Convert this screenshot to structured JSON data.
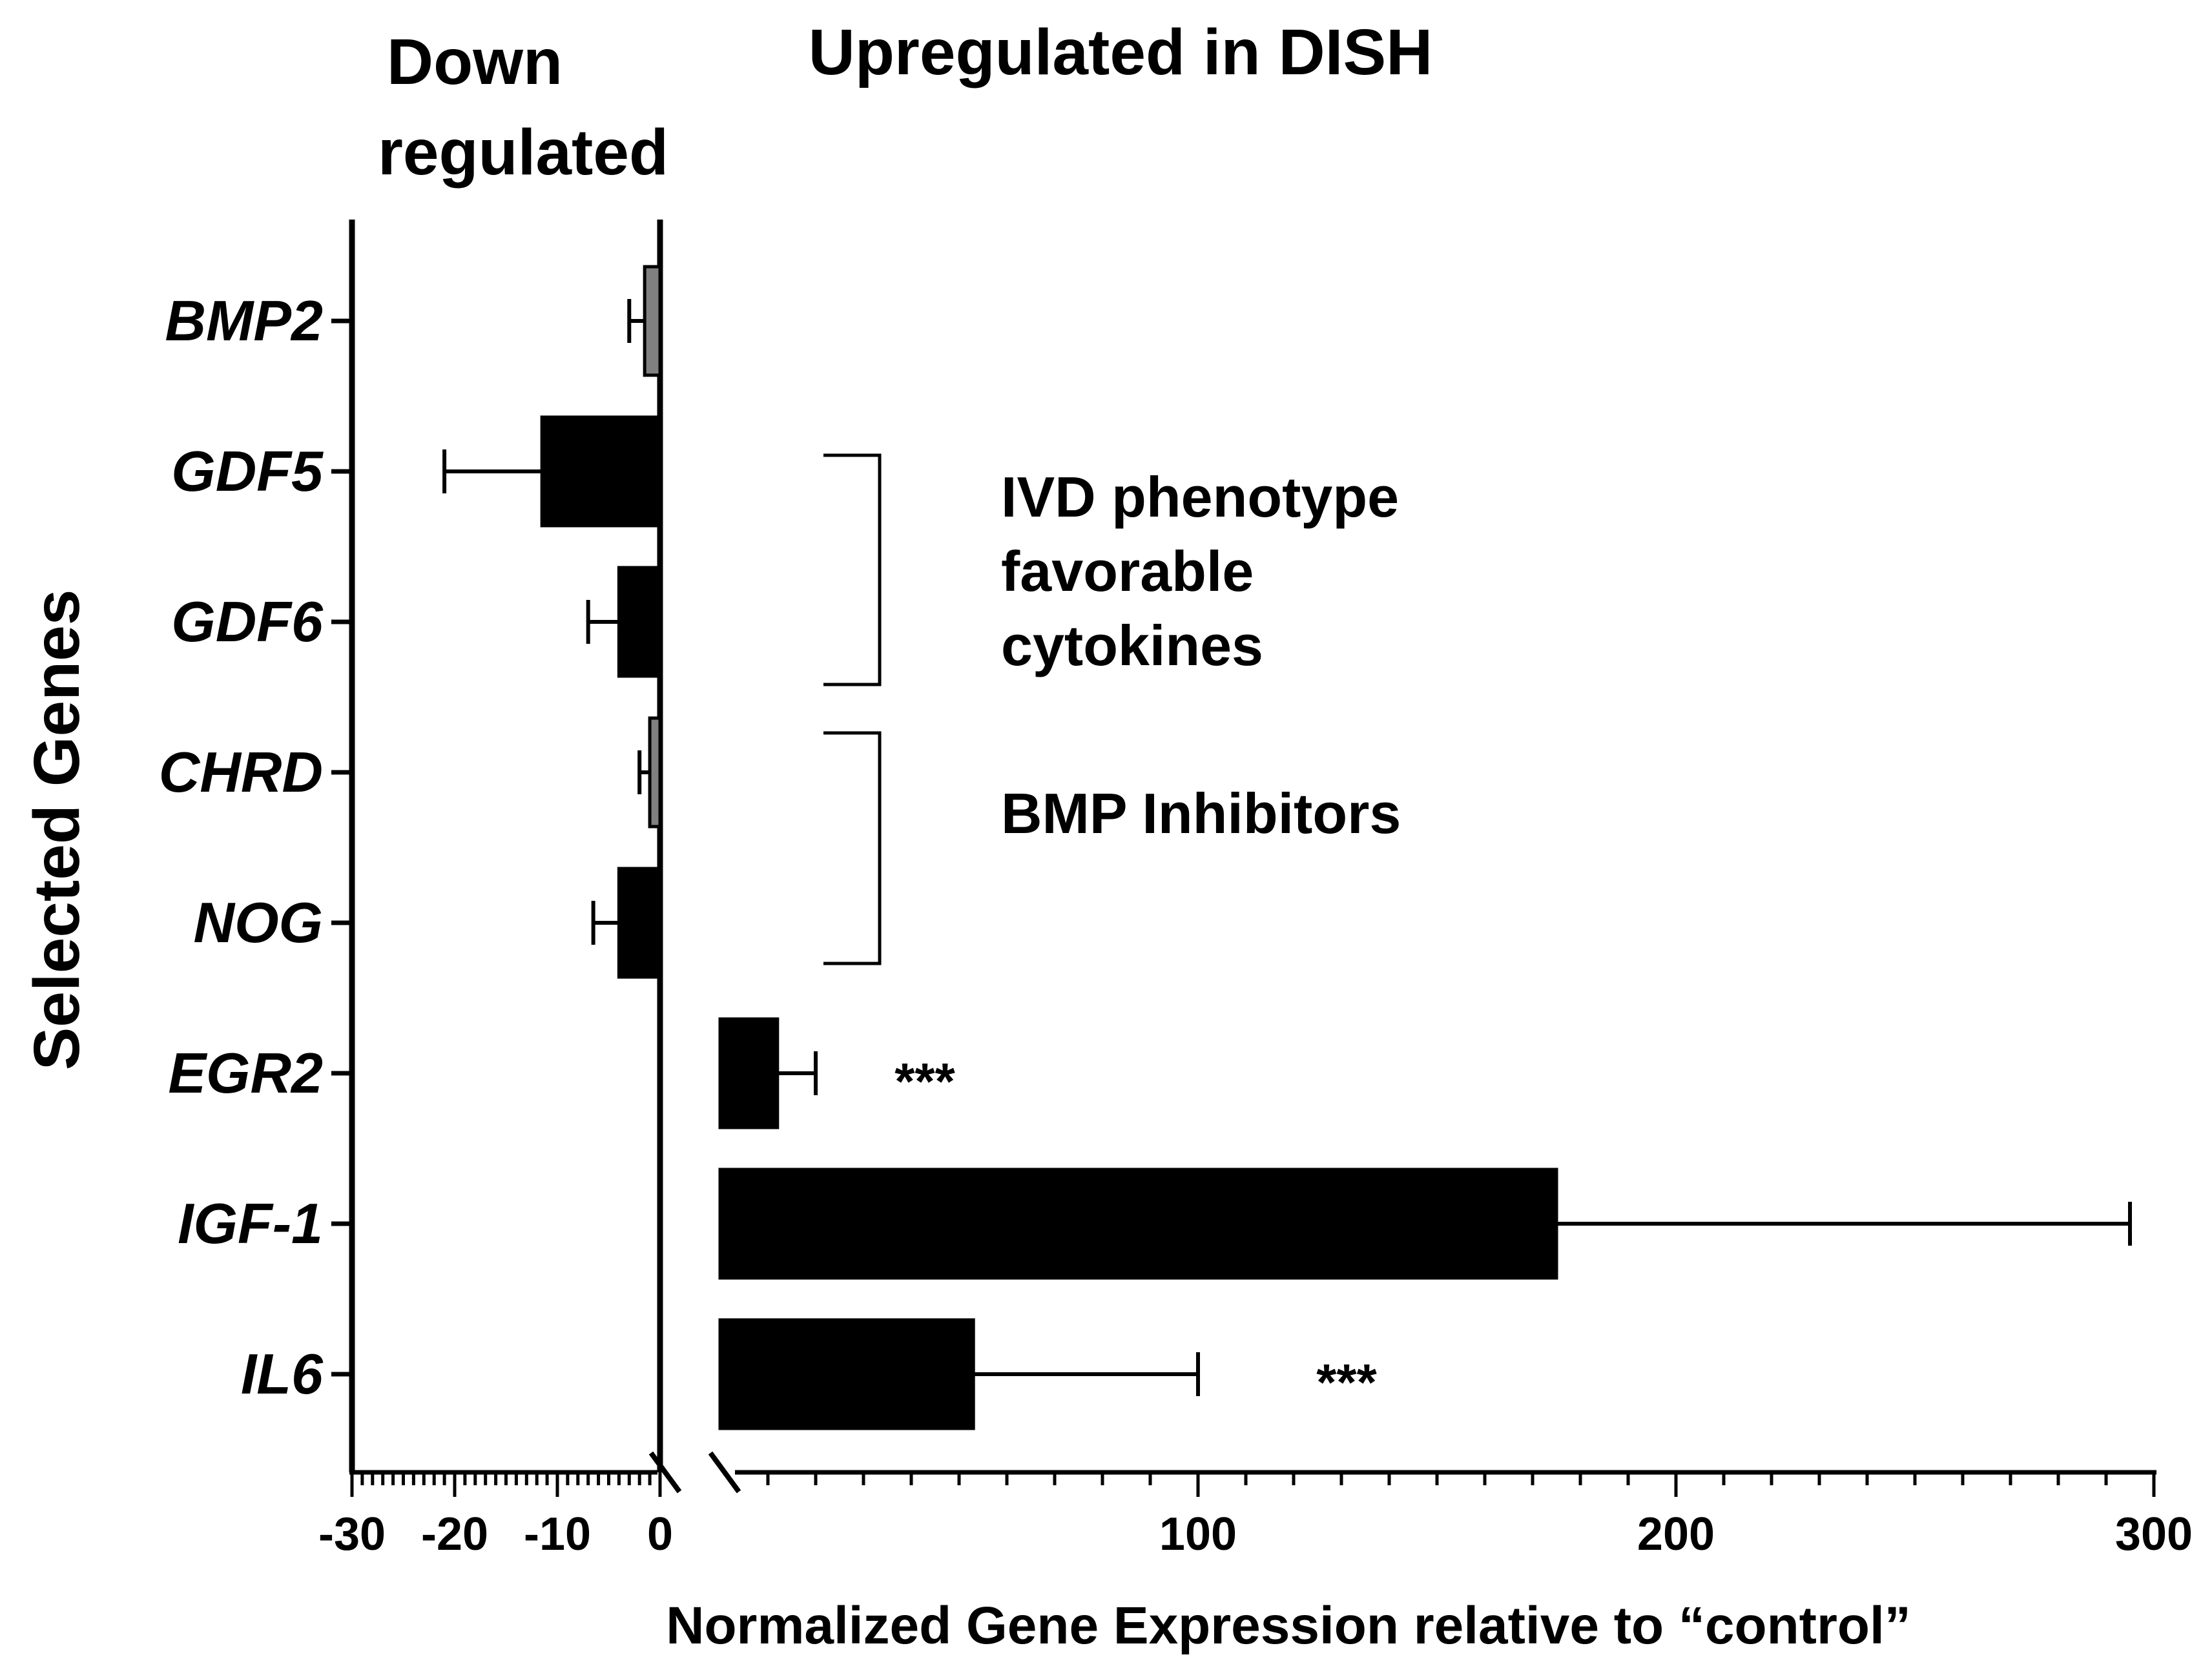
{
  "chart_data": {
    "type": "bar",
    "orientation": "horizontal",
    "axis_break": true,
    "headers": {
      "down_line1": "Down",
      "down_line2": "regulated",
      "up": "Upregulated in DISH"
    },
    "ylabel": "Selected Genes",
    "xlabel": "Normalized Gene Expression relative to “control”",
    "categories": [
      "BMP2",
      "GDF5",
      "GDF6",
      "CHRD",
      "NOG",
      "EGR2",
      "IGF-1",
      "IL6"
    ],
    "values": [
      -1.5,
      -11.5,
      -4,
      -1,
      -4,
      12,
      175,
      53
    ],
    "error_end": [
      -3,
      -21,
      -7,
      -2,
      -6.5,
      20,
      295,
      100
    ],
    "bar_colors": [
      "#808080",
      "#000000",
      "#000000",
      "#808080",
      "#000000",
      "#000000",
      "#000000",
      "#000000"
    ],
    "significance": [
      {
        "gene": "EGR2",
        "label": "***"
      },
      {
        "gene": "IL6",
        "label": "***"
      }
    ],
    "left_axis": {
      "range": [
        -30,
        0
      ],
      "ticks": [
        -30,
        -20,
        -10,
        0
      ],
      "tick_labels": [
        "-30",
        "-20",
        "-10",
        "0"
      ]
    },
    "right_axis": {
      "range": [
        0,
        300
      ],
      "ticks": [
        100,
        200,
        300
      ],
      "tick_labels": [
        "100",
        "200",
        "300"
      ]
    },
    "brackets": [
      {
        "label_lines": [
          "IVD phenotype",
          "favorable",
          "cytokines"
        ],
        "genes": [
          "GDF5",
          "GDF6"
        ]
      },
      {
        "label_lines": [
          "BMP Inhibitors"
        ],
        "genes": [
          "CHRD",
          "NOG"
        ]
      }
    ]
  }
}
